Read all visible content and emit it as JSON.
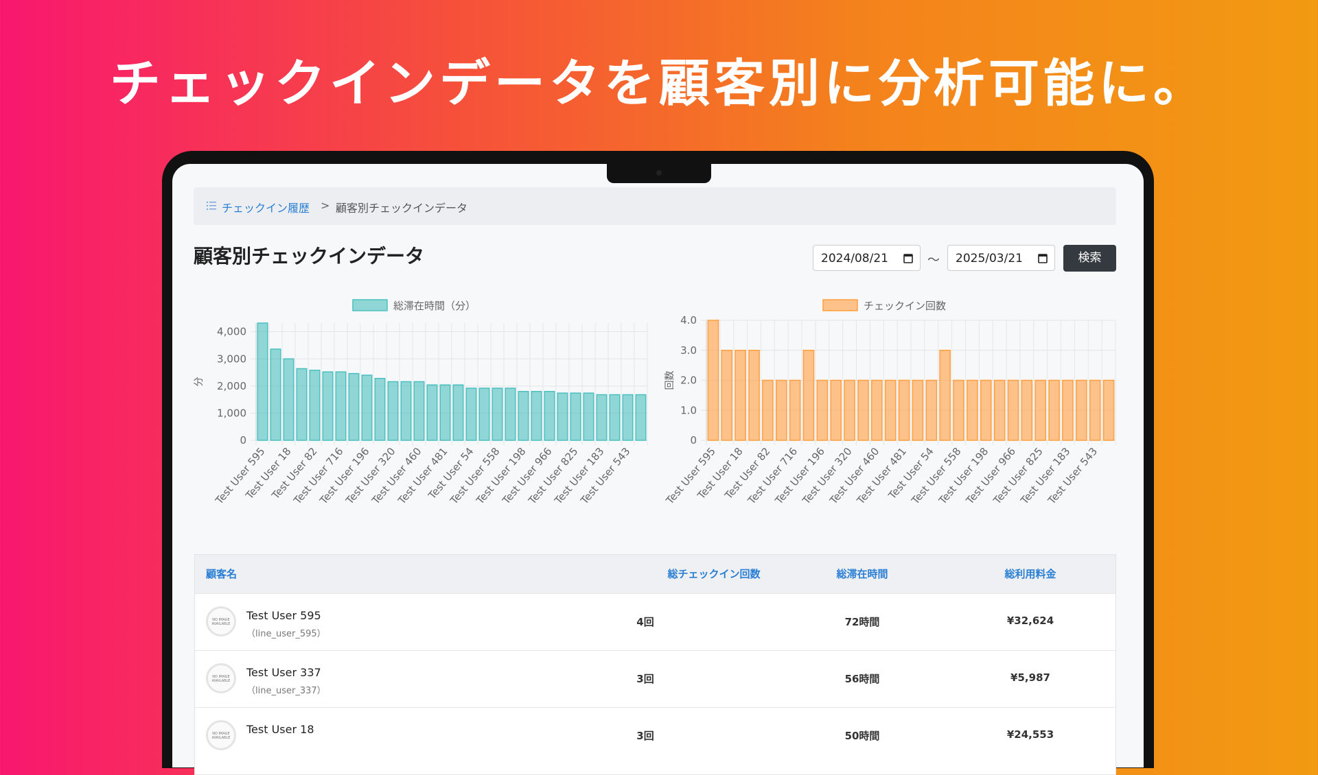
{
  "headline": "チェックインデータを顧客別に分析可能に。",
  "breadcrumb": {
    "link": "チェックイン履歴",
    "separator": ">",
    "current": "顧客別チェックインデータ"
  },
  "page_title": "顧客別チェックインデータ",
  "search": {
    "date_from": "2024/08/21",
    "tilde": "〜",
    "date_to": "2025/03/21",
    "button": "検索"
  },
  "chart_data": [
    {
      "type": "bar",
      "y_label": "分",
      "categories": [
        "Test User 595",
        null,
        "Test User 18",
        null,
        "Test User 82",
        null,
        "Test User 716",
        null,
        "Test User 196",
        null,
        "Test User 320",
        null,
        "Test User 460",
        null,
        "Test User 481",
        null,
        "Test User 54",
        null,
        "Test User 558",
        null,
        "Test User 198",
        null,
        "Test User 966",
        null,
        "Test User 825",
        null,
        "Test User 183",
        null,
        "Test User 543",
        null
      ],
      "series": [
        {
          "name": "総滞在時間（分）",
          "color": "#4bc0c0",
          "values": [
            4320,
            3360,
            3000,
            2640,
            2580,
            2520,
            2520,
            2460,
            2400,
            2280,
            2160,
            2160,
            2160,
            2040,
            2040,
            2040,
            1920,
            1920,
            1920,
            1920,
            1800,
            1800,
            1800,
            1740,
            1740,
            1740,
            1680,
            1680,
            1680,
            1680
          ]
        }
      ],
      "ylim": [
        0,
        4320
      ],
      "yticks": [
        0,
        {
          "value": 1000,
          "label": "1,000"
        },
        {
          "value": 2000,
          "label": "2,000"
        },
        {
          "value": 3000,
          "label": "3,000"
        },
        {
          "value": 4000,
          "label": "4,000"
        }
      ],
      "grid": true
    },
    {
      "type": "bar",
      "y_label": "回数",
      "categories": [
        "Test User 595",
        null,
        "Test User 18",
        null,
        "Test User 82",
        null,
        "Test User 716",
        null,
        "Test User 196",
        null,
        "Test User 320",
        null,
        "Test User 460",
        null,
        "Test User 481",
        null,
        "Test User 54",
        null,
        "Test User 558",
        null,
        "Test User 198",
        null,
        "Test User 966",
        null,
        "Test User 825",
        null,
        "Test User 183",
        null,
        "Test User 543",
        null
      ],
      "series": [
        {
          "name": "チェックイン回数",
          "color": "#ff9f40",
          "values": [
            4,
            3,
            3,
            3,
            2,
            2,
            2,
            3,
            2,
            2,
            2,
            2,
            2,
            2,
            2,
            2,
            2,
            3,
            2,
            2,
            2,
            2,
            2,
            2,
            2,
            2,
            2,
            2,
            2,
            2
          ]
        }
      ],
      "ylim": [
        0,
        4
      ],
      "yticks": [
        0,
        {
          "value": 1,
          "label": "1.0"
        },
        {
          "value": 2,
          "label": "2.0"
        },
        {
          "value": 3,
          "label": "3.0"
        },
        {
          "value": 4,
          "label": "4.0"
        }
      ],
      "grid": true
    }
  ],
  "table": {
    "header": [
      "顧客名",
      "総チェックイン回数",
      "総滞在時間",
      "総利用料金"
    ],
    "no_image": "NO IMAGE AVAILABLE",
    "rows": [
      {
        "name": "Test User 595",
        "id": "（line_user_595）",
        "count": "4回",
        "stay": "72時間",
        "fee": "¥32,624"
      },
      {
        "name": "Test User 337",
        "id": "（line_user_337）",
        "count": "3回",
        "stay": "56時間",
        "fee": "¥5,987"
      },
      {
        "name": "Test User 18",
        "count": "3回",
        "stay": "50時間",
        "fee": "¥24,553"
      }
    ]
  }
}
